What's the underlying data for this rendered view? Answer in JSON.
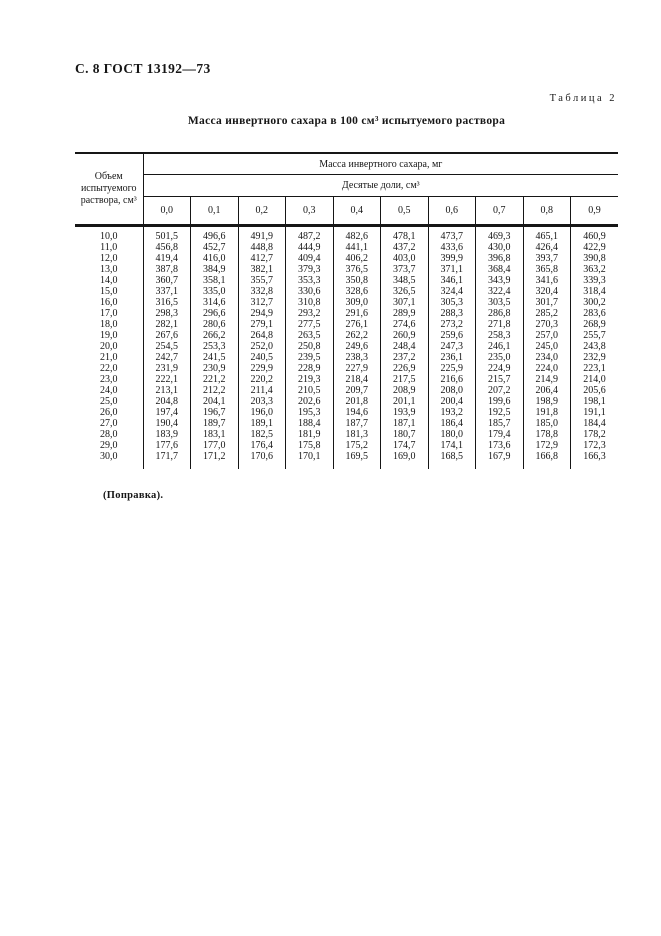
{
  "page": {
    "header": "С. 8 ГОСТ 13192—73",
    "table_label": "Таблица 2",
    "title": "Масса инвертного сахара в 100 см³ испытуемого раствора",
    "footnote": "(Поправка)."
  },
  "table": {
    "col1_header": "Объем испытуемого раствора, см³",
    "band1": "Масса инвертного сахара, мг",
    "band2": "Десятые доли, см³",
    "columns": [
      "0,0",
      "0,1",
      "0,2",
      "0,3",
      "0,4",
      "0,5",
      "0,6",
      "0,7",
      "0,8",
      "0,9"
    ],
    "rows": [
      {
        "volume": "10,0",
        "values": [
          "501,5",
          "496,6",
          "491,9",
          "487,2",
          "482,6",
          "478,1",
          "473,7",
          "469,3",
          "465,1",
          "460,9"
        ]
      },
      {
        "volume": "11,0",
        "values": [
          "456,8",
          "452,7",
          "448,8",
          "444,9",
          "441,1",
          "437,2",
          "433,6",
          "430,0",
          "426,4",
          "422,9"
        ]
      },
      {
        "volume": "12,0",
        "values": [
          "419,4",
          "416,0",
          "412,7",
          "409,4",
          "406,2",
          "403,0",
          "399,9",
          "396,8",
          "393,7",
          "390,8"
        ]
      },
      {
        "volume": "13,0",
        "values": [
          "387,8",
          "384,9",
          "382,1",
          "379,3",
          "376,5",
          "373,7",
          "371,1",
          "368,4",
          "365,8",
          "363,2"
        ]
      },
      {
        "volume": "14,0",
        "values": [
          "360,7",
          "358,1",
          "355,7",
          "353,3",
          "350,8",
          "348,5",
          "346,1",
          "343,9",
          "341,6",
          "339,3"
        ]
      },
      {
        "volume": "15,0",
        "values": [
          "337,1",
          "335,0",
          "332,8",
          "330,6",
          "328,6",
          "326,5",
          "324,4",
          "322,4",
          "320,4",
          "318,4"
        ]
      },
      {
        "volume": "16,0",
        "values": [
          "316,5",
          "314,6",
          "312,7",
          "310,8",
          "309,0",
          "307,1",
          "305,3",
          "303,5",
          "301,7",
          "300,2"
        ]
      },
      {
        "volume": "17,0",
        "values": [
          "298,3",
          "296,6",
          "294,9",
          "293,2",
          "291,6",
          "289,9",
          "288,3",
          "286,8",
          "285,2",
          "283,6"
        ]
      },
      {
        "volume": "18,0",
        "values": [
          "282,1",
          "280,6",
          "279,1",
          "277,5",
          "276,1",
          "274,6",
          "273,2",
          "271,8",
          "270,3",
          "268,9"
        ]
      },
      {
        "volume": "19,0",
        "values": [
          "267,6",
          "266,2",
          "264,8",
          "263,5",
          "262,2",
          "260,9",
          "259,6",
          "258,3",
          "257,0",
          "255,7"
        ]
      },
      {
        "volume": "20,0",
        "values": [
          "254,5",
          "253,3",
          "252,0",
          "250,8",
          "249,6",
          "248,4",
          "247,3",
          "246,1",
          "245,0",
          "243,8"
        ]
      },
      {
        "volume": "21,0",
        "values": [
          "242,7",
          "241,5",
          "240,5",
          "239,5",
          "238,3",
          "237,2",
          "236,1",
          "235,0",
          "234,0",
          "232,9"
        ]
      },
      {
        "volume": "22,0",
        "values": [
          "231,9",
          "230,9",
          "229,9",
          "228,9",
          "227,9",
          "226,9",
          "225,9",
          "224,9",
          "224,0",
          "223,1"
        ]
      },
      {
        "volume": "23,0",
        "values": [
          "222,1",
          "221,2",
          "220,2",
          "219,3",
          "218,4",
          "217,5",
          "216,6",
          "215,7",
          "214,9",
          "214,0"
        ]
      },
      {
        "volume": "24,0",
        "values": [
          "213,1",
          "212,2",
          "211,4",
          "210,5",
          "209,7",
          "208,9",
          "208,0",
          "207,2",
          "206,4",
          "205,6"
        ]
      },
      {
        "volume": "25,0",
        "values": [
          "204,8",
          "204,1",
          "203,3",
          "202,6",
          "201,8",
          "201,1",
          "200,4",
          "199,6",
          "198,9",
          "198,1"
        ]
      },
      {
        "volume": "26,0",
        "values": [
          "197,4",
          "196,7",
          "196,0",
          "195,3",
          "194,6",
          "193,9",
          "193,2",
          "192,5",
          "191,8",
          "191,1"
        ]
      },
      {
        "volume": "27,0",
        "values": [
          "190,4",
          "189,7",
          "189,1",
          "188,4",
          "187,7",
          "187,1",
          "186,4",
          "185,7",
          "185,0",
          "184,4"
        ]
      },
      {
        "volume": "28,0",
        "values": [
          "183,9",
          "183,1",
          "182,5",
          "181,9",
          "181,3",
          "180,7",
          "180,0",
          "179,4",
          "178,8",
          "178,2"
        ]
      },
      {
        "volume": "29,0",
        "values": [
          "177,6",
          "177,0",
          "176,4",
          "175,8",
          "175,2",
          "174,7",
          "174,1",
          "173,6",
          "172,9",
          "172,3"
        ]
      },
      {
        "volume": "30,0",
        "values": [
          "171,7",
          "171,2",
          "170,6",
          "170,1",
          "169,5",
          "169,0",
          "168,5",
          "167,9",
          "166,8",
          "166,3"
        ]
      }
    ]
  }
}
